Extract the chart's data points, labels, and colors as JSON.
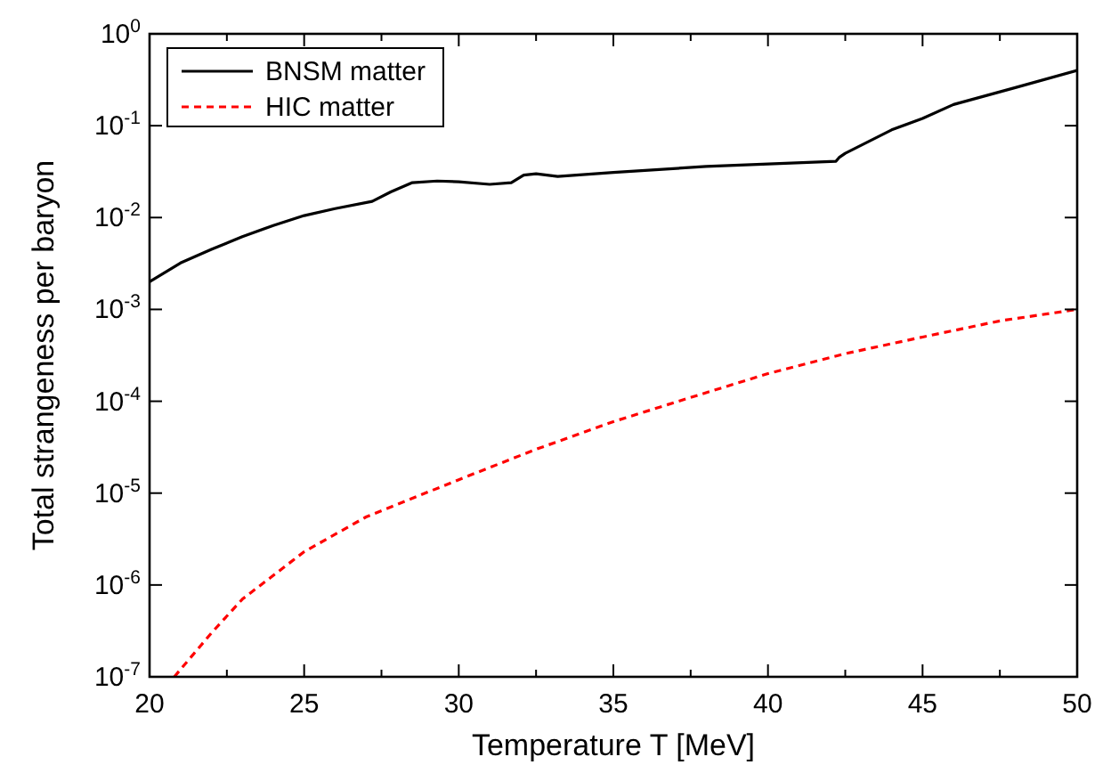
{
  "chart_data": {
    "type": "line",
    "xlabel": "Temperature T [MeV]",
    "ylabel": "Total strangeness per baryon",
    "log": "y",
    "legend": "top left",
    "xlim": [
      20,
      50
    ],
    "xticks": [
      20,
      {
        "value": 22.5,
        "label": null
      },
      25,
      {
        "value": 27.5,
        "label": null
      },
      30,
      {
        "value": 32.5,
        "label": null
      },
      35,
      {
        "value": 37.5,
        "label": null
      },
      40,
      {
        "value": 42.5,
        "label": null
      },
      45,
      {
        "value": 47.5,
        "label": null
      },
      50
    ],
    "ylim": [
      1e-07,
      1
    ],
    "yticks": [
      {
        "value": 1e-07,
        "label": "10$^{-7}$"
      },
      {
        "value": 1e-06,
        "label": "10$^{-6}$"
      },
      {
        "value": 1e-05,
        "label": "10$^{-5}$"
      },
      {
        "value": 0.0001,
        "label": "10$^{-4}$"
      },
      {
        "value": 0.001,
        "label": "10$^{-3}$"
      },
      {
        "value": 0.01,
        "label": "10$^{-2}$"
      },
      {
        "value": 0.1,
        "label": "10$^{-1}$"
      },
      {
        "value": 1,
        "label": "10$^{0}$"
      }
    ],
    "series": [
      {
        "name": "BNSM matter",
        "color": "#000000",
        "line_style": "solid",
        "x": [
          20,
          21,
          22,
          23,
          24,
          25,
          26,
          27.2,
          27.8,
          28.5,
          29.3,
          30,
          31,
          31.7,
          32.1,
          32.5,
          33.2,
          35,
          38,
          42.2,
          42.3,
          42.5,
          44,
          45,
          46,
          48,
          50
        ],
        "values": [
          0.002,
          0.0032,
          0.0045,
          0.0062,
          0.0082,
          0.0105,
          0.0125,
          0.015,
          0.019,
          0.024,
          0.025,
          0.0245,
          0.023,
          0.024,
          0.029,
          0.03,
          0.028,
          0.031,
          0.036,
          0.041,
          0.045,
          0.05,
          0.09,
          0.12,
          0.17,
          0.26,
          0.4
        ]
      },
      {
        "name": "HIC matter",
        "color": "#ff0000",
        "line_style": "dashed",
        "x": [
          20.8,
          22,
          23,
          25,
          27,
          30,
          32.5,
          35,
          37.5,
          40,
          42.5,
          45,
          47.5,
          50
        ],
        "values": [
          1e-07,
          3e-07,
          7e-07,
          2.3e-06,
          5.5e-06,
          1.4e-05,
          3e-05,
          6e-05,
          0.00011,
          0.0002,
          0.00033,
          0.0005,
          0.00075,
          0.001
        ]
      }
    ]
  }
}
